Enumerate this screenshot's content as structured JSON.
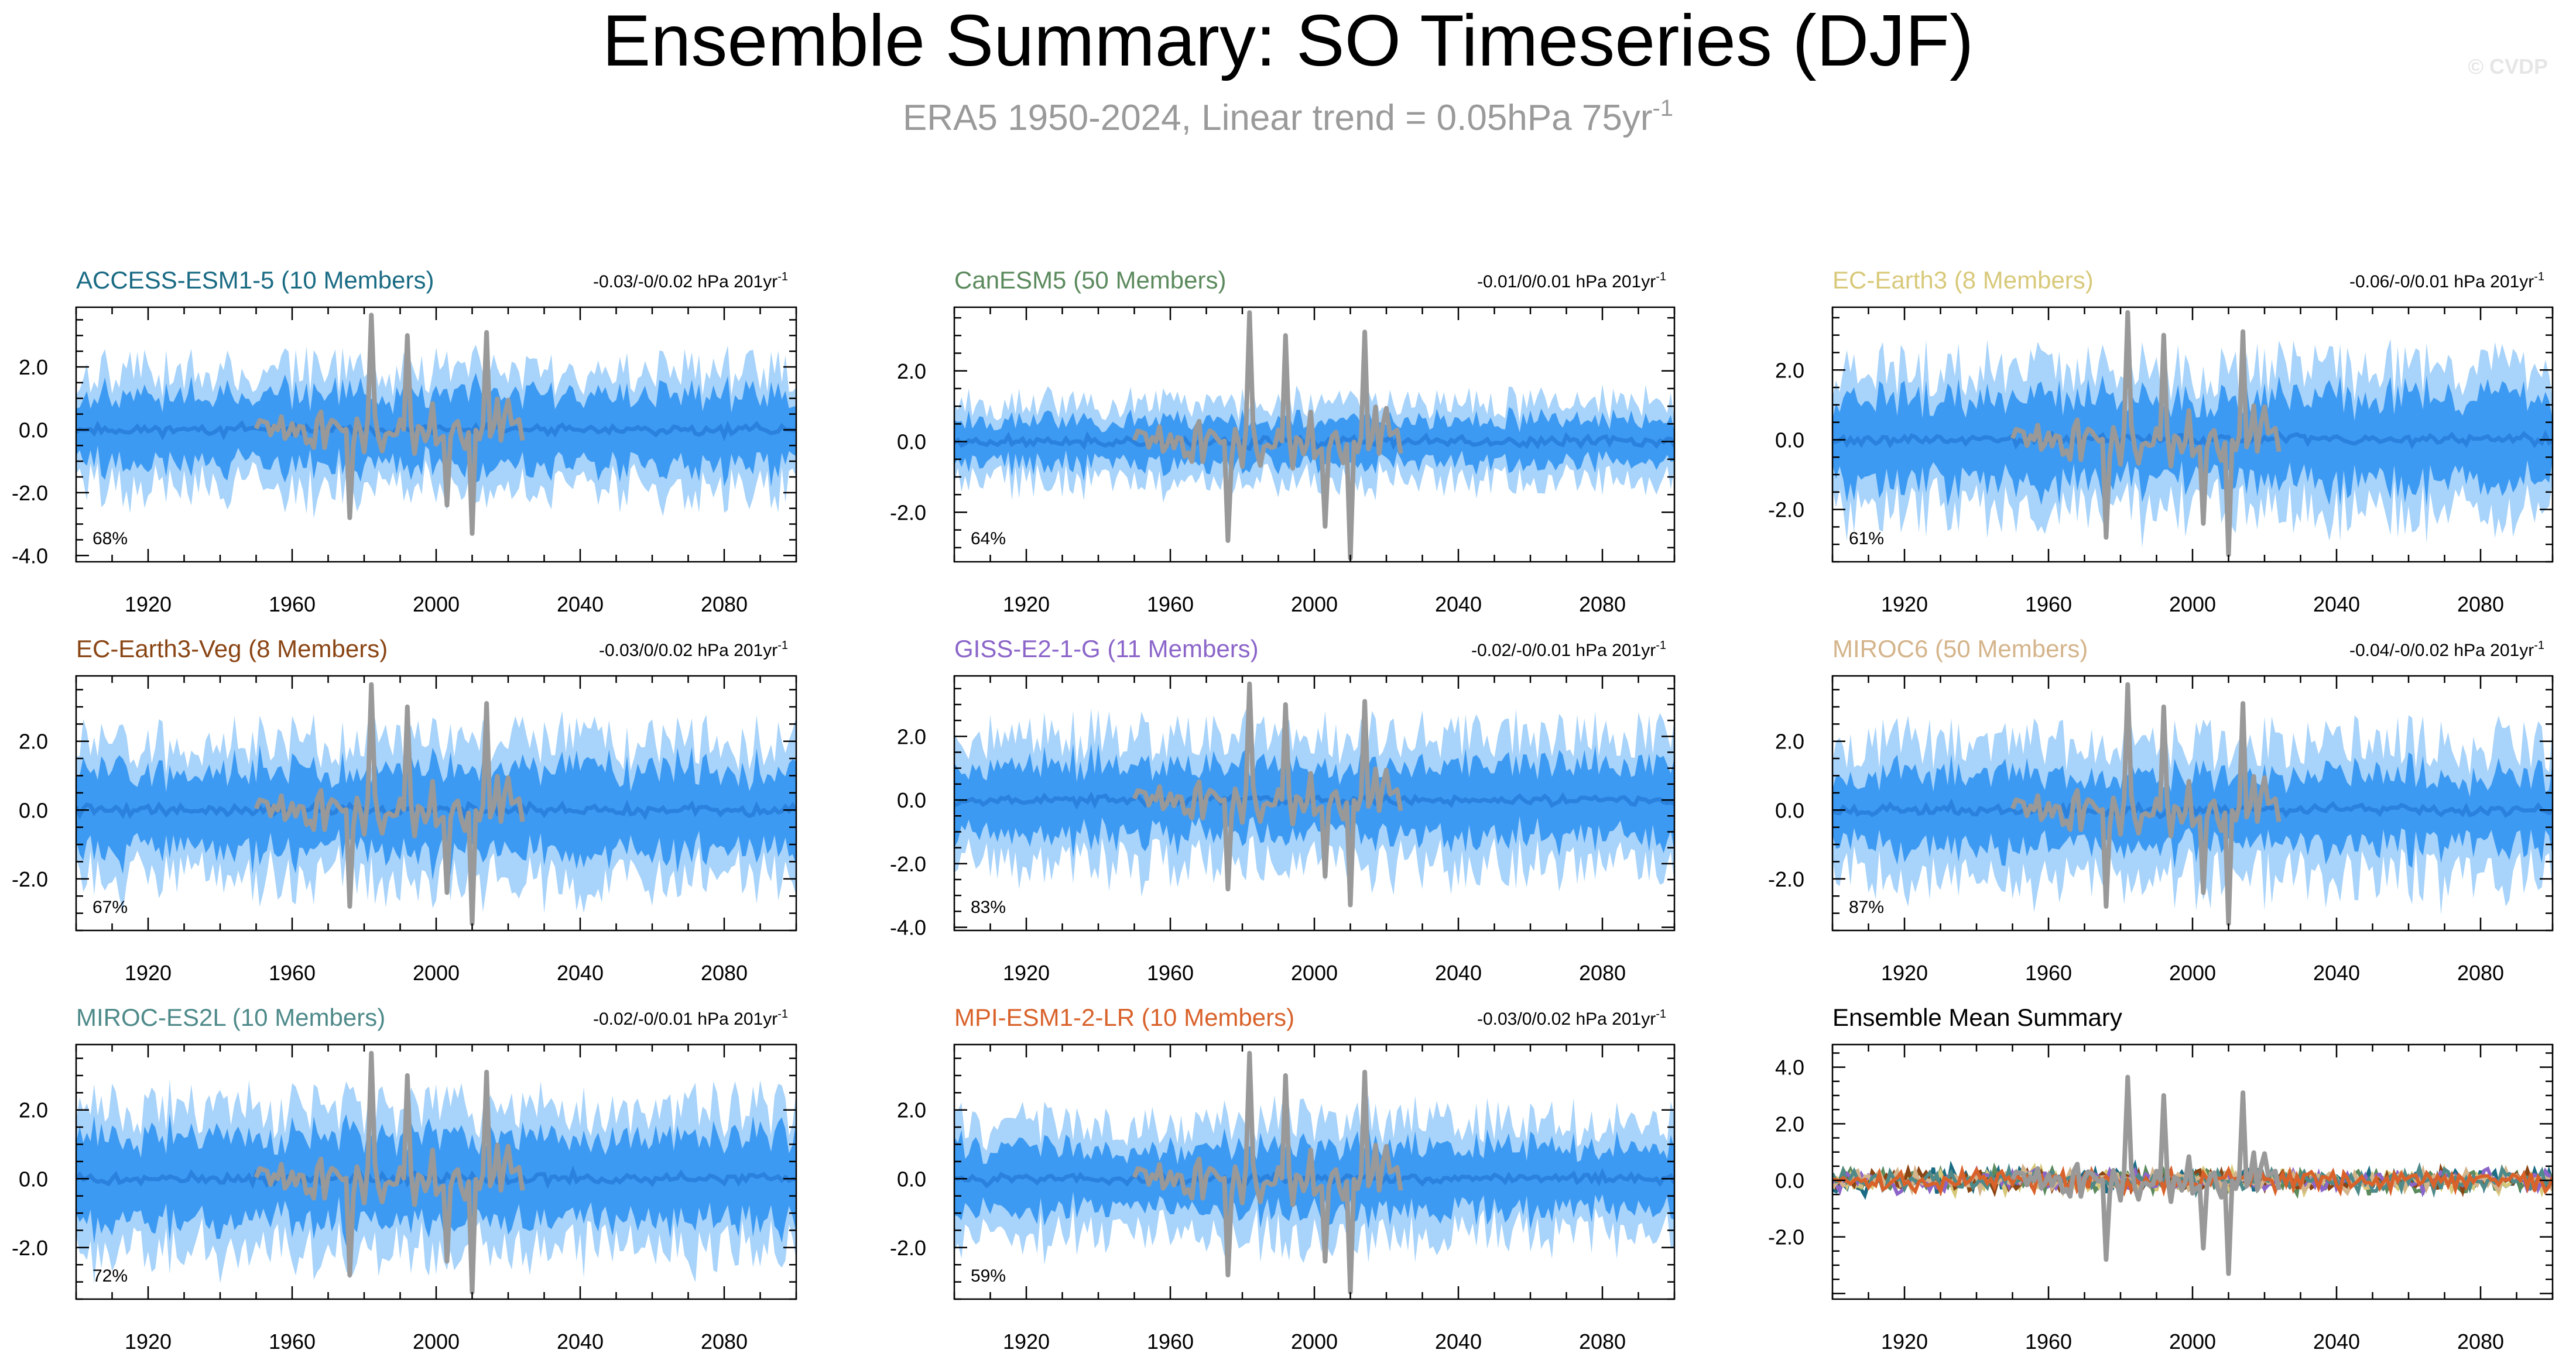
{
  "figure": {
    "title": "Ensemble Summary: SO Timeseries (DJF)",
    "subtitle_prefix": "ERA5 1950-2024, Linear trend = 0.05hPa 75yr",
    "subtitle_exp": "-1",
    "watermark": "© CVDP"
  },
  "colors": {
    "obs": "#999999",
    "outer_spread": "#a8d3fa",
    "inner_spread": "#3d9af2",
    "ens_mean": "#2a82de",
    "axis": "#000000",
    "subtitle": "#9a9a9a"
  },
  "chart_data": [
    {
      "type": "line",
      "panel": "ACCESS-ESM1-5",
      "title": "ACCESS-ESM1-5 (10 Members)",
      "title_color": "#1a6b84",
      "trend": "-0.03/-0/0.02 hPa 201yr",
      "trend_exp": "-1",
      "percent": "68%",
      "ylim": [
        -4.2,
        3.9
      ],
      "yticks": [
        -4,
        -2,
        0,
        2
      ],
      "yticklabels": [
        "-4.0",
        "-2.0",
        "0.0",
        "2.0"
      ],
      "x_range": [
        1900,
        2100
      ],
      "xticks": [
        1920,
        1960,
        2000,
        2040,
        2080
      ],
      "xticklabels": [
        "1920",
        "1960",
        "2000",
        "2040",
        "2080"
      ],
      "spread_outer": 2.0,
      "spread_inner": 1.2,
      "seed": 11
    },
    {
      "type": "line",
      "panel": "CanESM5",
      "title": "CanESM5 (50 Members)",
      "title_color": "#5b8a5d",
      "trend": "-0.01/0/0.01 hPa 201yr",
      "trend_exp": "-1",
      "percent": "64%",
      "ylim": [
        -3.4,
        3.8
      ],
      "yticks": [
        -2,
        0,
        2
      ],
      "yticklabels": [
        "-2.0",
        "0.0",
        "2.0"
      ],
      "x_range": [
        1900,
        2100
      ],
      "xticks": [
        1920,
        1960,
        2000,
        2040,
        2080
      ],
      "xticklabels": [
        "1920",
        "1960",
        "2000",
        "2040",
        "2080"
      ],
      "spread_outer": 1.2,
      "spread_inner": 0.65,
      "seed": 23
    },
    {
      "type": "line",
      "panel": "EC-Earth3",
      "title": "EC-Earth3 (8 Members)",
      "title_color": "#d8c97a",
      "trend": "-0.06/-0/0.01 hPa 201yr",
      "trend_exp": "-1",
      "percent": "61%",
      "ylim": [
        -3.5,
        3.8
      ],
      "yticks": [
        -2,
        0,
        2
      ],
      "yticklabels": [
        "-2.0",
        "0.0",
        "2.0"
      ],
      "x_range": [
        1900,
        2100
      ],
      "xticks": [
        1920,
        1960,
        2000,
        2040,
        2080
      ],
      "xticklabels": [
        "1920",
        "1960",
        "2000",
        "2040",
        "2080"
      ],
      "spread_outer": 2.2,
      "spread_inner": 1.3,
      "seed": 37
    },
    {
      "type": "line",
      "panel": "EC-Earth3-Veg",
      "title": "EC-Earth3-Veg (8 Members)",
      "title_color": "#8a4514",
      "trend": "-0.03/0/0.02 hPa 201yr",
      "trend_exp": "-1",
      "percent": "67%",
      "ylim": [
        -3.5,
        3.9
      ],
      "yticks": [
        -2,
        0,
        2
      ],
      "yticklabels": [
        "-2.0",
        "0.0",
        "2.0"
      ],
      "x_range": [
        1900,
        2100
      ],
      "xticks": [
        1920,
        1960,
        2000,
        2040,
        2080
      ],
      "xticklabels": [
        "1920",
        "1960",
        "2000",
        "2040",
        "2080"
      ],
      "spread_outer": 2.1,
      "spread_inner": 1.25,
      "seed": 41
    },
    {
      "type": "line",
      "panel": "GISS-E2-1-G",
      "title": "GISS-E2-1-G (11 Members)",
      "title_color": "#8b65c9",
      "trend": "-0.02/-0/0.01 hPa 201yr",
      "trend_exp": "-1",
      "percent": "83%",
      "ylim": [
        -4.1,
        3.9
      ],
      "yticks": [
        -4,
        -2,
        0,
        2
      ],
      "yticklabels": [
        "-4.0",
        "-2.0",
        "0.0",
        "2.0"
      ],
      "x_range": [
        1900,
        2100
      ],
      "xticks": [
        1920,
        1960,
        2000,
        2040,
        2080
      ],
      "xticklabels": [
        "1920",
        "1960",
        "2000",
        "2040",
        "2080"
      ],
      "spread_outer": 2.2,
      "spread_inner": 1.2,
      "seed": 53
    },
    {
      "type": "line",
      "panel": "MIROC6",
      "title": "MIROC6 (50 Members)",
      "title_color": "#d4b48b",
      "trend": "-0.04/-0/0.02 hPa 201yr",
      "trend_exp": "-1",
      "percent": "87%",
      "ylim": [
        -3.5,
        3.9
      ],
      "yticks": [
        -2,
        0,
        2
      ],
      "yticklabels": [
        "-2.0",
        "0.0",
        "2.0"
      ],
      "x_range": [
        1900,
        2100
      ],
      "xticks": [
        1920,
        1960,
        2000,
        2040,
        2080
      ],
      "xticklabels": [
        "1920",
        "1960",
        "2000",
        "2040",
        "2080"
      ],
      "spread_outer": 2.1,
      "spread_inner": 1.1,
      "seed": 67
    },
    {
      "type": "line",
      "panel": "MIROC-ES2L",
      "title": "MIROC-ES2L (10 Members)",
      "title_color": "#4f8a8a",
      "trend": "-0.02/-0/0.01 hPa 201yr",
      "trend_exp": "-1",
      "percent": "72%",
      "ylim": [
        -3.5,
        3.9
      ],
      "yticks": [
        -2,
        0,
        2
      ],
      "yticklabels": [
        "-2.0",
        "0.0",
        "2.0"
      ],
      "x_range": [
        1900,
        2100
      ],
      "xticks": [
        1920,
        1960,
        2000,
        2040,
        2080
      ],
      "xticklabels": [
        "1920",
        "1960",
        "2000",
        "2040",
        "2080"
      ],
      "spread_outer": 2.2,
      "spread_inner": 1.3,
      "seed": 71
    },
    {
      "type": "line",
      "panel": "MPI-ESM1-2-LR",
      "title": "MPI-ESM1-2-LR (10 Members)",
      "title_color": "#d9622b",
      "trend": "-0.03/0/0.02 hPa 201yr",
      "trend_exp": "-1",
      "percent": "59%",
      "ylim": [
        -3.5,
        3.9
      ],
      "yticks": [
        -2,
        0,
        2
      ],
      "yticklabels": [
        "-2.0",
        "0.0",
        "2.0"
      ],
      "x_range": [
        1900,
        2100
      ],
      "xticks": [
        1920,
        1960,
        2000,
        2040,
        2080
      ],
      "xticklabels": [
        "1920",
        "1960",
        "2000",
        "2040",
        "2080"
      ],
      "spread_outer": 1.8,
      "spread_inner": 1.0,
      "seed": 83
    },
    {
      "type": "line",
      "panel": "Ensemble Mean Summary",
      "title": "Ensemble Mean Summary",
      "title_color": "#000000",
      "ylim": [
        -4.2,
        4.8
      ],
      "yticks": [
        -2,
        0,
        2,
        4
      ],
      "yticklabels": [
        "-2.0",
        "0.0",
        "2.0",
        "4.0"
      ],
      "x_range": [
        1900,
        2100
      ],
      "xticks": [
        1920,
        1960,
        2000,
        2040,
        2080
      ],
      "xticklabels": [
        "1920",
        "1960",
        "2000",
        "2040",
        "2080"
      ],
      "series_colors": [
        "#1a6b84",
        "#5b8a5d",
        "#d8c97a",
        "#8a4514",
        "#8b65c9",
        "#d4b48b",
        "#4f8a8a",
        "#d9622b"
      ],
      "seed": 97
    }
  ]
}
